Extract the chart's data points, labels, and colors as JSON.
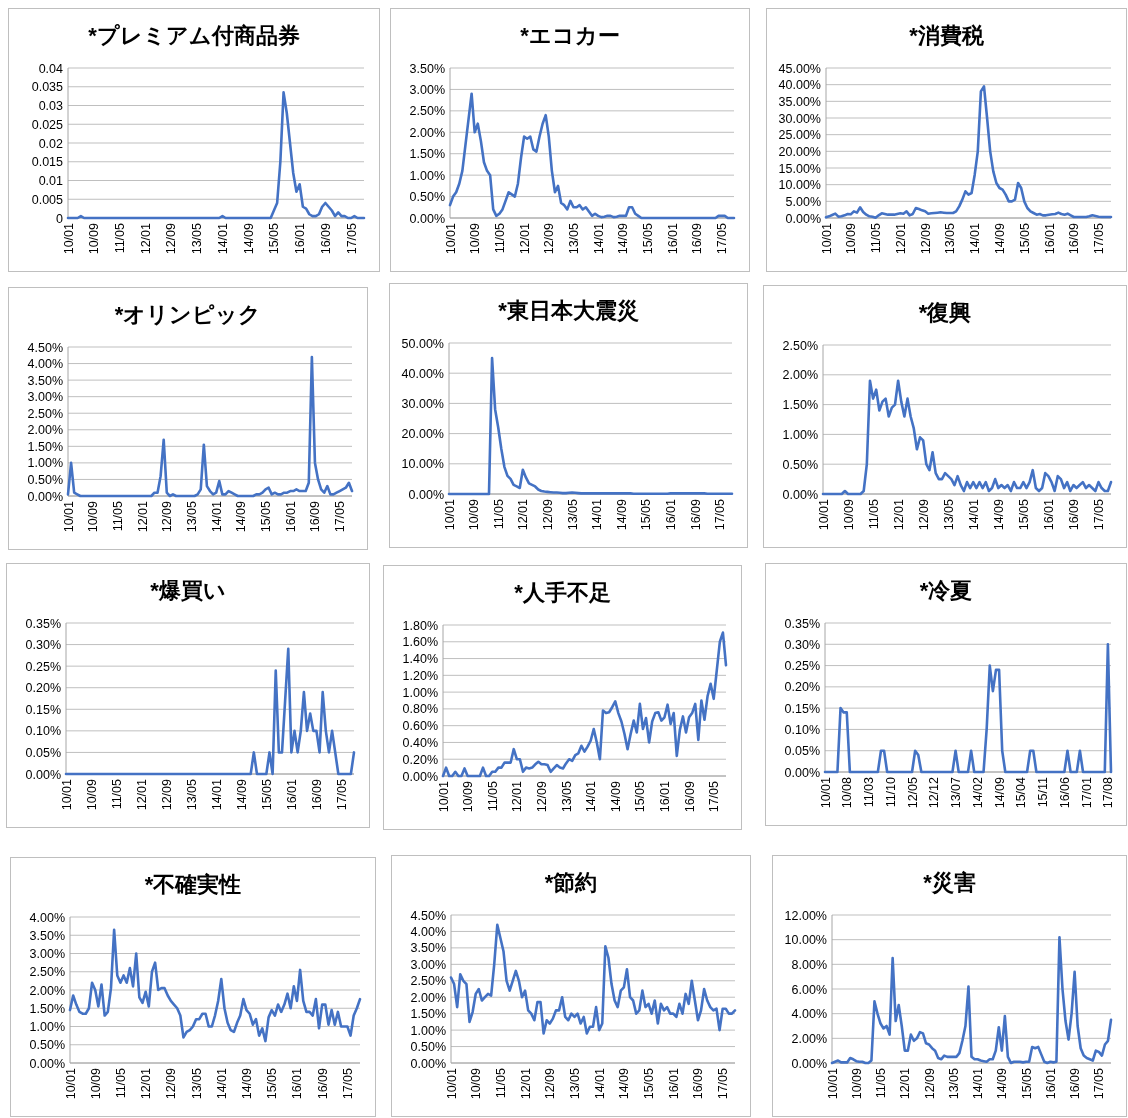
{
  "chart_data": [
    {
      "type": "line",
      "title": "*プレミアム付商品券",
      "color": "#4472c4",
      "grid": "y",
      "ylim": [
        0,
        0.04
      ],
      "yticks": [
        0,
        0.005,
        0.01,
        0.015,
        0.02,
        0.025,
        0.03,
        0.035,
        0.04
      ],
      "categories": [
        "10/01",
        null,
        null,
        null,
        null,
        null,
        null,
        null,
        "10/09",
        null,
        null,
        null,
        null,
        null,
        null,
        null,
        "11/05",
        null,
        null,
        null,
        null,
        null,
        null,
        null,
        "12/01",
        null,
        null,
        null,
        null,
        null,
        null,
        null,
        "12/09",
        null,
        null,
        null,
        null,
        null,
        null,
        null,
        "13/05",
        null,
        null,
        null,
        null,
        null,
        null,
        null,
        "14/01",
        null,
        null,
        null,
        null,
        null,
        null,
        null,
        "14/09",
        null,
        null,
        null,
        null,
        null,
        null,
        null,
        "15/05",
        null,
        null,
        null,
        null,
        null,
        null,
        null,
        "16/01",
        null,
        null,
        null,
        null,
        null,
        null,
        null,
        "16/09",
        null,
        null,
        null,
        null,
        null,
        null,
        null,
        "17/05",
        null,
        null,
        null,
        null
      ],
      "values": [
        0,
        0,
        0,
        0,
        0.0005,
        0,
        0,
        0,
        0,
        0,
        0,
        0,
        0,
        0,
        0,
        0,
        0,
        0,
        0,
        0,
        0,
        0,
        0,
        0,
        0,
        0,
        0,
        0,
        0,
        0,
        0,
        0,
        0,
        0,
        0,
        0,
        0,
        0,
        0,
        0,
        0,
        0,
        0,
        0,
        0,
        0,
        0,
        0,
        0.0005,
        0,
        0,
        0,
        0,
        0,
        0,
        0,
        0,
        0,
        0,
        0,
        0,
        0,
        0,
        0,
        0.002,
        0.004,
        0.015,
        0.0335,
        0.028,
        0.02,
        0.012,
        0.007,
        0.009,
        0.003,
        0.0025,
        0.001,
        0.0005,
        0.0005,
        0.001,
        0.003,
        0.004,
        0.003,
        0.002,
        0.0005,
        0.0015,
        0.0005,
        0.0005,
        0,
        0,
        0.0005,
        0,
        0,
        0
      ]
    },
    {
      "type": "line",
      "title": "*エコカー",
      "color": "#4472c4",
      "grid": "y",
      "ylim": [
        0,
        3.5
      ],
      "yticks": [
        {
          "value": 0,
          "label": "0.00%"
        },
        {
          "value": 0.5,
          "label": "0.50%"
        },
        {
          "value": 1,
          "label": "1.00%"
        },
        {
          "value": 1.5,
          "label": "1.50%"
        },
        {
          "value": 2,
          "label": "2.00%"
        },
        {
          "value": 2.5,
          "label": "2.50%"
        },
        {
          "value": 3,
          "label": "3.00%"
        },
        {
          "value": 3.5,
          "label": "3.50%"
        }
      ],
      "categories": [
        "10/01",
        null,
        null,
        null,
        null,
        null,
        null,
        null,
        "10/09",
        null,
        null,
        null,
        null,
        null,
        null,
        null,
        "11/05",
        null,
        null,
        null,
        null,
        null,
        null,
        null,
        "12/01",
        null,
        null,
        null,
        null,
        null,
        null,
        null,
        "12/09",
        null,
        null,
        null,
        null,
        null,
        null,
        null,
        "13/05",
        null,
        null,
        null,
        null,
        null,
        null,
        null,
        "14/01",
        null,
        null,
        null,
        null,
        null,
        null,
        null,
        "14/09",
        null,
        null,
        null,
        null,
        null,
        null,
        null,
        "15/05",
        null,
        null,
        null,
        null,
        null,
        null,
        null,
        "16/01",
        null,
        null,
        null,
        null,
        null,
        null,
        null,
        "16/09",
        null,
        null,
        null,
        null,
        null,
        null,
        null,
        "17/05",
        null,
        null,
        null,
        null
      ],
      "values": [
        0.3,
        0.5,
        0.6,
        0.8,
        1.1,
        1.7,
        2.3,
        2.9,
        2.0,
        2.2,
        1.8,
        1.3,
        1.1,
        1.0,
        0.2,
        0.05,
        0.1,
        0.2,
        0.4,
        0.6,
        0.55,
        0.5,
        0.8,
        1.4,
        1.9,
        1.85,
        1.9,
        1.6,
        1.55,
        1.9,
        2.2,
        2.4,
        1.9,
        1.1,
        0.6,
        0.75,
        0.35,
        0.3,
        0.2,
        0.4,
        0.25,
        0.25,
        0.3,
        0.2,
        0.25,
        0.15,
        0.05,
        0.1,
        0.05,
        0.02,
        0.03,
        0.05,
        0.05,
        0.02,
        0.03,
        0.05,
        0.05,
        0.05,
        0.25,
        0.25,
        0.1,
        0.05,
        0,
        0,
        0,
        0,
        0,
        0,
        0,
        0,
        0,
        0,
        0,
        0,
        0,
        0,
        0,
        0,
        0,
        0,
        0,
        0,
        0,
        0,
        0,
        0,
        0,
        0.05,
        0.05,
        0.05,
        0,
        0,
        0
      ]
    },
    {
      "type": "line",
      "title": "*消費税",
      "color": "#4472c4",
      "grid": "y",
      "ylim": [
        0,
        45
      ],
      "yticks": [
        {
          "value": 0,
          "label": "0.00%"
        },
        {
          "value": 5,
          "label": "5.00%"
        },
        {
          "value": 10,
          "label": "10.00%"
        },
        {
          "value": 15,
          "label": "15.00%"
        },
        {
          "value": 20,
          "label": "20.00%"
        },
        {
          "value": 25,
          "label": "25.00%"
        },
        {
          "value": 30,
          "label": "30.00%"
        },
        {
          "value": 35,
          "label": "35.00%"
        },
        {
          "value": 40,
          "label": "40.00%"
        },
        {
          "value": 45,
          "label": "45.00%"
        }
      ],
      "categories": [
        "10/01",
        null,
        null,
        null,
        null,
        null,
        null,
        null,
        "10/09",
        null,
        null,
        null,
        null,
        null,
        null,
        null,
        "11/05",
        null,
        null,
        null,
        null,
        null,
        null,
        null,
        "12/01",
        null,
        null,
        null,
        null,
        null,
        null,
        null,
        "12/09",
        null,
        null,
        null,
        null,
        null,
        null,
        null,
        "13/05",
        null,
        null,
        null,
        null,
        null,
        null,
        null,
        "14/01",
        null,
        null,
        null,
        null,
        null,
        null,
        null,
        "14/09",
        null,
        null,
        null,
        null,
        null,
        null,
        null,
        "15/05",
        null,
        null,
        null,
        null,
        null,
        null,
        null,
        "16/01",
        null,
        null,
        null,
        null,
        null,
        null,
        null,
        "16/09",
        null,
        null,
        null,
        null,
        null,
        null,
        null,
        "17/05",
        null,
        null,
        null,
        null
      ],
      "values": [
        0.2,
        0.5,
        0.9,
        1.3,
        0.4,
        0.5,
        0.8,
        1.2,
        1.1,
        2.0,
        1.6,
        3.2,
        1.8,
        1.0,
        0.5,
        0.4,
        0.1,
        0.8,
        1.4,
        1.2,
        1.0,
        1.0,
        1.0,
        1.2,
        1.4,
        1.3,
        2.0,
        0.8,
        1.2,
        3.0,
        2.7,
        2.3,
        2.0,
        1.3,
        1.4,
        1.5,
        1.6,
        1.7,
        1.6,
        1.5,
        1.5,
        1.5,
        2.0,
        3.5,
        5.5,
        8,
        7,
        7.5,
        13,
        20,
        38,
        39.5,
        30,
        20,
        14,
        10.5,
        9,
        8.5,
        7,
        5,
        5,
        5.5,
        10.5,
        9,
        5,
        3,
        2,
        1.5,
        1,
        1.2,
        0.8,
        0.8,
        1,
        1.1,
        1.2,
        1.6,
        1.2,
        1.0,
        1.3,
        0.8,
        0.3,
        0.3,
        0.3,
        0.3,
        0.3,
        0.5,
        0.8,
        0.6,
        0.4,
        0.3,
        0.3,
        0.3,
        0.3
      ]
    },
    {
      "type": "line",
      "title": "*オリンピック",
      "color": "#4472c4",
      "grid": "y",
      "ylim": [
        0,
        4.5
      ],
      "yticks": [
        {
          "value": 0,
          "label": "0.00%"
        },
        {
          "value": 0.5,
          "label": "0.50%"
        },
        {
          "value": 1,
          "label": "1.00%"
        },
        {
          "value": 1.5,
          "label": "1.50%"
        },
        {
          "value": 2,
          "label": "2.00%"
        },
        {
          "value": 2.5,
          "label": "2.50%"
        },
        {
          "value": 3,
          "label": "3.00%"
        },
        {
          "value": 3.5,
          "label": "3.50%"
        },
        {
          "value": 4,
          "label": "4.00%"
        },
        {
          "value": 4.5,
          "label": "4.50%"
        }
      ],
      "categories": [
        "10/01",
        null,
        null,
        null,
        null,
        null,
        null,
        null,
        "10/09",
        null,
        null,
        null,
        null,
        null,
        null,
        null,
        "11/05",
        null,
        null,
        null,
        null,
        null,
        null,
        null,
        "12/01",
        null,
        null,
        null,
        null,
        null,
        null,
        null,
        "12/09",
        null,
        null,
        null,
        null,
        null,
        null,
        null,
        "13/05",
        null,
        null,
        null,
        null,
        null,
        null,
        null,
        "14/01",
        null,
        null,
        null,
        null,
        null,
        null,
        null,
        "14/09",
        null,
        null,
        null,
        null,
        null,
        null,
        null,
        "15/05",
        null,
        null,
        null,
        null,
        null,
        null,
        null,
        "16/01",
        null,
        null,
        null,
        null,
        null,
        null,
        null,
        "16/09",
        null,
        null,
        null,
        null,
        null,
        null,
        null,
        "17/05",
        null,
        null,
        null,
        null
      ],
      "values": [
        0.05,
        1.0,
        0.1,
        0.05,
        0,
        0,
        0,
        0,
        0,
        0,
        0,
        0,
        0,
        0,
        0,
        0,
        0,
        0,
        0,
        0,
        0,
        0,
        0,
        0,
        0,
        0,
        0,
        0,
        0.1,
        0.1,
        0.6,
        1.7,
        0.1,
        0,
        0.05,
        0,
        0,
        0,
        0,
        0,
        0,
        0,
        0.05,
        0.2,
        1.55,
        0.3,
        0.15,
        0.05,
        0.1,
        0.45,
        0.05,
        0.05,
        0.15,
        0.1,
        0.05,
        0,
        0,
        0,
        0,
        0,
        0,
        0.05,
        0.05,
        0.1,
        0.2,
        0.25,
        0.05,
        0.1,
        0.05,
        0.05,
        0.1,
        0.1,
        0.15,
        0.15,
        0.2,
        0.15,
        0.15,
        0.15,
        0.4,
        4.2,
        1.0,
        0.5,
        0.2,
        0.1,
        0.3,
        0.05,
        0.05,
        0.1,
        0.15,
        0.2,
        0.25,
        0.4,
        0.15
      ]
    },
    {
      "type": "line",
      "title": "*東日本大震災",
      "color": "#4472c4",
      "grid": "y",
      "ylim": [
        0,
        50
      ],
      "yticks": [
        {
          "value": 0,
          "label": "0.00%"
        },
        {
          "value": 10,
          "label": "10.00%"
        },
        {
          "value": 20,
          "label": "20.00%"
        },
        {
          "value": 30,
          "label": "30.00%"
        },
        {
          "value": 40,
          "label": "40.00%"
        },
        {
          "value": 50,
          "label": "50.00%"
        }
      ],
      "categories": [
        "10/01",
        null,
        null,
        null,
        null,
        null,
        null,
        null,
        "10/09",
        null,
        null,
        null,
        null,
        null,
        null,
        null,
        "11/05",
        null,
        null,
        null,
        null,
        null,
        null,
        null,
        "12/01",
        null,
        null,
        null,
        null,
        null,
        null,
        null,
        "12/09",
        null,
        null,
        null,
        null,
        null,
        null,
        null,
        "13/05",
        null,
        null,
        null,
        null,
        null,
        null,
        null,
        "14/01",
        null,
        null,
        null,
        null,
        null,
        null,
        null,
        "14/09",
        null,
        null,
        null,
        null,
        null,
        null,
        null,
        "15/05",
        null,
        null,
        null,
        null,
        null,
        null,
        null,
        "16/01",
        null,
        null,
        null,
        null,
        null,
        null,
        null,
        "16/09",
        null,
        null,
        null,
        null,
        null,
        null,
        null,
        "17/05",
        null,
        null,
        null,
        null
      ],
      "values": [
        0,
        0,
        0,
        0,
        0,
        0,
        0,
        0,
        0,
        0,
        0,
        0,
        0,
        0,
        45,
        28,
        22,
        15,
        9,
        6,
        5,
        3,
        2.5,
        2,
        8,
        5.5,
        3.5,
        3,
        2.5,
        1.5,
        1,
        0.8,
        0.7,
        0.6,
        0.5,
        0.5,
        0.4,
        0.3,
        0.3,
        0.4,
        0.5,
        0.4,
        0.3,
        0.2,
        0.2,
        0.2,
        0.2,
        0.2,
        0.2,
        0.2,
        0.2,
        0.2,
        0.2,
        0.2,
        0.2,
        0.2,
        0.2,
        0.2,
        0.2,
        0.2,
        0.1,
        0.1,
        0.1,
        0.1,
        0.1,
        0.1,
        0.1,
        0.1,
        0.1,
        0.1,
        0.1,
        0.1,
        0.2,
        0.2,
        0.2,
        0.2,
        0.2,
        0.2,
        0.2,
        0.2,
        0.2,
        0.2,
        0.2,
        0.2,
        0.1,
        0.1,
        0.1,
        0.1,
        0.1,
        0.1,
        0.1,
        0.1,
        0.1
      ]
    },
    {
      "type": "line",
      "title": "*復興",
      "color": "#4472c4",
      "grid": "y",
      "ylim": [
        0,
        2.5
      ],
      "yticks": [
        {
          "value": 0,
          "label": "0.00%"
        },
        {
          "value": 0.5,
          "label": "0.50%"
        },
        {
          "value": 1,
          "label": "1.00%"
        },
        {
          "value": 1.5,
          "label": "1.50%"
        },
        {
          "value": 2,
          "label": "2.00%"
        },
        {
          "value": 2.5,
          "label": "2.50%"
        }
      ],
      "categories": [
        "10/01",
        null,
        null,
        null,
        null,
        null,
        null,
        null,
        "10/09",
        null,
        null,
        null,
        null,
        null,
        null,
        null,
        "11/05",
        null,
        null,
        null,
        null,
        null,
        null,
        null,
        "12/01",
        null,
        null,
        null,
        null,
        null,
        null,
        null,
        "12/09",
        null,
        null,
        null,
        null,
        null,
        null,
        null,
        "13/05",
        null,
        null,
        null,
        null,
        null,
        null,
        null,
        "14/01",
        null,
        null,
        null,
        null,
        null,
        null,
        null,
        "14/09",
        null,
        null,
        null,
        null,
        null,
        null,
        null,
        "15/05",
        null,
        null,
        null,
        null,
        null,
        null,
        null,
        "16/01",
        null,
        null,
        null,
        null,
        null,
        null,
        null,
        "16/09",
        null,
        null,
        null,
        null,
        null,
        null,
        null,
        "17/05",
        null,
        null,
        null,
        null
      ],
      "values": [
        0,
        0,
        0,
        0,
        0,
        0,
        0,
        0.05,
        0,
        0,
        0,
        0,
        0,
        0.05,
        0.5,
        1.9,
        1.6,
        1.75,
        1.4,
        1.55,
        1.6,
        1.3,
        1.45,
        1.5,
        1.9,
        1.55,
        1.3,
        1.6,
        1.3,
        1.1,
        0.75,
        0.95,
        0.9,
        0.5,
        0.4,
        0.7,
        0.35,
        0.25,
        0.25,
        0.35,
        0.3,
        0.25,
        0.15,
        0.3,
        0.15,
        0.05,
        0.2,
        0.1,
        0.2,
        0.1,
        0.2,
        0.1,
        0.2,
        0.05,
        0.1,
        0.25,
        0.1,
        0.15,
        0.1,
        0.15,
        0.05,
        0.2,
        0.1,
        0.1,
        0.2,
        0.1,
        0.2,
        0.4,
        0.1,
        0.05,
        0.1,
        0.35,
        0.3,
        0.2,
        0.05,
        0.3,
        0.25,
        0.1,
        0.2,
        0.05,
        0.15,
        0.1,
        0.15,
        0.2,
        0.1,
        0.15,
        0.1,
        0.05,
        0.2,
        0.1,
        0.05,
        0.05,
        0.2
      ]
    },
    {
      "type": "line",
      "title": "*爆買い",
      "color": "#4472c4",
      "grid": "y",
      "ylim": [
        0,
        0.35
      ],
      "yticks": [
        {
          "value": 0,
          "label": "0.00%"
        },
        {
          "value": 0.05,
          "label": "0.05%"
        },
        {
          "value": 0.1,
          "label": "0.10%"
        },
        {
          "value": 0.15,
          "label": "0.15%"
        },
        {
          "value": 0.2,
          "label": "0.20%"
        },
        {
          "value": 0.25,
          "label": "0.25%"
        },
        {
          "value": 0.3,
          "label": "0.30%"
        },
        {
          "value": 0.35,
          "label": "0.35%"
        }
      ],
      "categories": [
        "10/01",
        null,
        null,
        null,
        null,
        null,
        null,
        null,
        "10/09",
        null,
        null,
        null,
        null,
        null,
        null,
        null,
        "11/05",
        null,
        null,
        null,
        null,
        null,
        null,
        null,
        "12/01",
        null,
        null,
        null,
        null,
        null,
        null,
        null,
        "12/09",
        null,
        null,
        null,
        null,
        null,
        null,
        null,
        "13/05",
        null,
        null,
        null,
        null,
        null,
        null,
        null,
        "14/01",
        null,
        null,
        null,
        null,
        null,
        null,
        null,
        "14/09",
        null,
        null,
        null,
        null,
        null,
        null,
        null,
        "15/05",
        null,
        null,
        null,
        null,
        null,
        null,
        null,
        "16/01",
        null,
        null,
        null,
        null,
        null,
        null,
        null,
        "16/09",
        null,
        null,
        null,
        null,
        null,
        null,
        null,
        "17/05",
        null,
        null,
        null,
        null
      ],
      "values": [
        0,
        0,
        0,
        0,
        0,
        0,
        0,
        0,
        0,
        0,
        0,
        0,
        0,
        0,
        0,
        0,
        0,
        0,
        0,
        0,
        0,
        0,
        0,
        0,
        0,
        0,
        0,
        0,
        0,
        0,
        0,
        0,
        0,
        0,
        0,
        0,
        0,
        0,
        0,
        0,
        0,
        0,
        0,
        0,
        0,
        0,
        0,
        0,
        0,
        0,
        0,
        0,
        0,
        0,
        0,
        0,
        0,
        0,
        0,
        0,
        0.05,
        0,
        0,
        0,
        0,
        0.05,
        0,
        0.24,
        0.05,
        0.05,
        0.17,
        0.29,
        0.05,
        0.1,
        0.05,
        0.1,
        0.19,
        0.1,
        0.14,
        0.1,
        0.1,
        0.05,
        0.19,
        0.1,
        0.05,
        0.1,
        0.05,
        0,
        0,
        0,
        0,
        0,
        0.05
      ]
    },
    {
      "type": "line",
      "title": "*人手不足",
      "color": "#4472c4",
      "grid": "y",
      "ylim": [
        0,
        1.8
      ],
      "yticks": [
        {
          "value": 0,
          "label": "0.00%"
        },
        {
          "value": 0.2,
          "label": "0.20%"
        },
        {
          "value": 0.4,
          "label": "0.40%"
        },
        {
          "value": 0.6,
          "label": "0.60%"
        },
        {
          "value": 0.8,
          "label": "0.80%"
        },
        {
          "value": 1,
          "label": "1.00%"
        },
        {
          "value": 1.2,
          "label": "1.20%"
        },
        {
          "value": 1.4,
          "label": "1.40%"
        },
        {
          "value": 1.6,
          "label": "1.60%"
        },
        {
          "value": 1.8,
          "label": "1.80%"
        }
      ],
      "categories": [
        "10/01",
        null,
        null,
        null,
        null,
        null,
        null,
        null,
        "10/09",
        null,
        null,
        null,
        null,
        null,
        null,
        null,
        "11/05",
        null,
        null,
        null,
        null,
        null,
        null,
        null,
        "12/01",
        null,
        null,
        null,
        null,
        null,
        null,
        null,
        "12/09",
        null,
        null,
        null,
        null,
        null,
        null,
        null,
        "13/05",
        null,
        null,
        null,
        null,
        null,
        null,
        null,
        "14/01",
        null,
        null,
        null,
        null,
        null,
        null,
        null,
        "14/09",
        null,
        null,
        null,
        null,
        null,
        null,
        null,
        "15/05",
        null,
        null,
        null,
        null,
        null,
        null,
        null,
        "16/01",
        null,
        null,
        null,
        null,
        null,
        null,
        null,
        "16/09",
        null,
        null,
        null,
        null,
        null,
        null,
        null,
        "17/05",
        null,
        null,
        null,
        null
      ],
      "values": [
        0,
        0.1,
        0,
        0,
        0.05,
        0,
        0,
        0.09,
        0,
        0,
        0,
        0,
        0,
        0.1,
        0,
        0,
        0.05,
        0.05,
        0.1,
        0.1,
        0.16,
        0.16,
        0.16,
        0.32,
        0.2,
        0.2,
        0.05,
        0.1,
        0.09,
        0.1,
        0.14,
        0.17,
        0.14,
        0.14,
        0.13,
        0.05,
        0.09,
        0.13,
        0.1,
        0.09,
        0.15,
        0.2,
        0.18,
        0.25,
        0.27,
        0.36,
        0.29,
        0.35,
        0.42,
        0.56,
        0.4,
        0.2,
        0.78,
        0.75,
        0.76,
        0.82,
        0.89,
        0.75,
        0.65,
        0.5,
        0.32,
        0.5,
        0.66,
        0.52,
        0.86,
        0.56,
        0.69,
        0.4,
        0.65,
        0.75,
        0.76,
        0.66,
        0.7,
        0.85,
        0.62,
        0.75,
        0.24,
        0.55,
        0.71,
        0.52,
        0.7,
        0.75,
        0.86,
        0.43,
        0.9,
        0.67,
        0.95,
        1.1,
        0.92,
        1.26,
        1.6,
        1.71,
        1.32
      ]
    },
    {
      "type": "line",
      "title": "*冷夏",
      "color": "#4472c4",
      "grid": "y",
      "ylim": [
        0,
        0.35
      ],
      "yticks": [
        {
          "value": 0,
          "label": "0.00%"
        },
        {
          "value": 0.05,
          "label": "0.05%"
        },
        {
          "value": 0.1,
          "label": "0.10%"
        },
        {
          "value": 0.15,
          "label": "0.15%"
        },
        {
          "value": 0.2,
          "label": "0.20%"
        },
        {
          "value": 0.25,
          "label": "0.25%"
        },
        {
          "value": 0.3,
          "label": "0.30%"
        },
        {
          "value": 0.35,
          "label": "0.35%"
        }
      ],
      "categories": [
        "10/01",
        null,
        null,
        null,
        null,
        null,
        null,
        "10/08",
        null,
        null,
        null,
        null,
        null,
        null,
        "11/03",
        null,
        null,
        null,
        null,
        null,
        null,
        "11/10",
        null,
        null,
        null,
        null,
        null,
        null,
        "12/05",
        null,
        null,
        null,
        null,
        null,
        null,
        "12/12",
        null,
        null,
        null,
        null,
        null,
        null,
        "13/07",
        null,
        null,
        null,
        null,
        null,
        null,
        "14/02",
        null,
        null,
        null,
        null,
        null,
        null,
        "14/09",
        null,
        null,
        null,
        null,
        null,
        null,
        "15/04",
        null,
        null,
        null,
        null,
        null,
        null,
        "15/11",
        null,
        null,
        null,
        null,
        null,
        null,
        "16/06",
        null,
        null,
        null,
        null,
        null,
        null,
        "17/01",
        null,
        null,
        null,
        null,
        null,
        null,
        "17/08",
        null
      ],
      "values": [
        0,
        0,
        0,
        0,
        0,
        0.15,
        0.14,
        0.14,
        0,
        0,
        0,
        0,
        0,
        0,
        0,
        0,
        0,
        0,
        0.05,
        0.05,
        0,
        0,
        0,
        0,
        0,
        0,
        0,
        0,
        0,
        0.05,
        0.04,
        0,
        0,
        0,
        0,
        0,
        0,
        0,
        0,
        0,
        0,
        0,
        0.05,
        0,
        0,
        0,
        0,
        0.05,
        0,
        0,
        0,
        0,
        0.1,
        0.25,
        0.19,
        0.24,
        0.24,
        0.05,
        0,
        0,
        0,
        0,
        0,
        0,
        0,
        0,
        0.05,
        0.05,
        0,
        0,
        0,
        0,
        0,
        0,
        0,
        0,
        0,
        0,
        0.05,
        0,
        0,
        0,
        0.05,
        0,
        0,
        0,
        0,
        0,
        0,
        0,
        0,
        0.3,
        0
      ]
    },
    {
      "type": "line",
      "title": "*不確実性",
      "color": "#4472c4",
      "grid": "y",
      "ylim": [
        0,
        4
      ],
      "yticks": [
        {
          "value": 0,
          "label": "0.00%"
        },
        {
          "value": 0.5,
          "label": "0.50%"
        },
        {
          "value": 1,
          "label": "1.00%"
        },
        {
          "value": 1.5,
          "label": "1.50%"
        },
        {
          "value": 2,
          "label": "2.00%"
        },
        {
          "value": 2.5,
          "label": "2.50%"
        },
        {
          "value": 3,
          "label": "3.00%"
        },
        {
          "value": 3.5,
          "label": "3.50%"
        },
        {
          "value": 4,
          "label": "4.00%"
        }
      ],
      "categories": [
        "10/01",
        null,
        null,
        null,
        null,
        null,
        null,
        null,
        "10/09",
        null,
        null,
        null,
        null,
        null,
        null,
        null,
        "11/05",
        null,
        null,
        null,
        null,
        null,
        null,
        null,
        "12/01",
        null,
        null,
        null,
        null,
        null,
        null,
        null,
        "12/09",
        null,
        null,
        null,
        null,
        null,
        null,
        null,
        "13/05",
        null,
        null,
        null,
        null,
        null,
        null,
        null,
        "14/01",
        null,
        null,
        null,
        null,
        null,
        null,
        null,
        "14/09",
        null,
        null,
        null,
        null,
        null,
        null,
        null,
        "15/05",
        null,
        null,
        null,
        null,
        null,
        null,
        null,
        "16/01",
        null,
        null,
        null,
        null,
        null,
        null,
        null,
        "16/09",
        null,
        null,
        null,
        null,
        null,
        null,
        null,
        "17/05",
        null,
        null,
        null,
        null
      ],
      "values": [
        1.45,
        1.85,
        1.6,
        1.4,
        1.35,
        1.35,
        1.5,
        2.2,
        2.0,
        1.55,
        2.15,
        1.3,
        1.4,
        2.05,
        3.65,
        2.4,
        2.2,
        2.4,
        2.2,
        2.6,
        2.1,
        3.0,
        1.8,
        1.65,
        1.95,
        1.55,
        2.5,
        2.75,
        2.0,
        2.05,
        2.05,
        1.85,
        1.7,
        1.6,
        1.5,
        1.3,
        0.7,
        0.85,
        0.9,
        1.0,
        1.2,
        1.2,
        1.35,
        1.35,
        1.0,
        1.0,
        1.3,
        1.7,
        2.3,
        1.5,
        1.1,
        0.9,
        0.85,
        1.1,
        1.3,
        1.75,
        1.45,
        1.35,
        1.05,
        1.2,
        0.75,
        0.95,
        0.6,
        1.25,
        1.45,
        1.3,
        1.6,
        1.4,
        1.6,
        1.9,
        1.5,
        2.1,
        1.7,
        2.55,
        1.7,
        1.4,
        1.4,
        1.3,
        1.75,
        0.95,
        1.6,
        1.6,
        1.05,
        1.45,
        1.05,
        1.4,
        1.0,
        1.0,
        1.0,
        0.75,
        1.3,
        1.5,
        1.75
      ]
    },
    {
      "type": "line",
      "title": "*節約",
      "color": "#4472c4",
      "grid": "y",
      "ylim": [
        0,
        4.5
      ],
      "yticks": [
        {
          "value": 0,
          "label": "0.00%"
        },
        {
          "value": 0.5,
          "label": "0.50%"
        },
        {
          "value": 1,
          "label": "1.00%"
        },
        {
          "value": 1.5,
          "label": "1.50%"
        },
        {
          "value": 2,
          "label": "2.00%"
        },
        {
          "value": 2.5,
          "label": "2.50%"
        },
        {
          "value": 3,
          "label": "3.00%"
        },
        {
          "value": 3.5,
          "label": "3.50%"
        },
        {
          "value": 4,
          "label": "4.00%"
        },
        {
          "value": 4.5,
          "label": "4.50%"
        }
      ],
      "categories": [
        "10/01",
        null,
        null,
        null,
        null,
        null,
        null,
        null,
        "10/09",
        null,
        null,
        null,
        null,
        null,
        null,
        null,
        "11/05",
        null,
        null,
        null,
        null,
        null,
        null,
        null,
        "12/01",
        null,
        null,
        null,
        null,
        null,
        null,
        null,
        "12/09",
        null,
        null,
        null,
        null,
        null,
        null,
        null,
        "13/05",
        null,
        null,
        null,
        null,
        null,
        null,
        null,
        "14/01",
        null,
        null,
        null,
        null,
        null,
        null,
        null,
        "14/09",
        null,
        null,
        null,
        null,
        null,
        null,
        null,
        "15/05",
        null,
        null,
        null,
        null,
        null,
        null,
        null,
        "16/01",
        null,
        null,
        null,
        null,
        null,
        null,
        null,
        "16/09",
        null,
        null,
        null,
        null,
        null,
        null,
        null,
        "17/05",
        null,
        null,
        null,
        null
      ],
      "values": [
        2.6,
        2.4,
        1.7,
        2.7,
        2.5,
        2.4,
        1.25,
        1.55,
        2.1,
        2.25,
        1.9,
        2.0,
        2.1,
        2.05,
        3.0,
        4.2,
        3.8,
        3.4,
        2.5,
        2.2,
        2.5,
        2.8,
        2.5,
        2.0,
        2.2,
        1.6,
        1.5,
        1.3,
        1.85,
        1.85,
        0.9,
        1.3,
        1.2,
        1.35,
        1.6,
        1.6,
        2.0,
        1.4,
        1.3,
        1.5,
        1.4,
        1.5,
        1.2,
        1.4,
        0.9,
        1.1,
        1.1,
        1.7,
        1.0,
        1.2,
        3.55,
        3.2,
        2.4,
        1.9,
        1.7,
        2.2,
        2.3,
        2.85,
        2.0,
        1.9,
        1.5,
        1.6,
        2.2,
        1.7,
        1.8,
        1.5,
        1.9,
        1.2,
        1.8,
        1.6,
        1.7,
        1.5,
        1.5,
        1.4,
        1.8,
        1.5,
        2.1,
        1.8,
        2.5,
        1.9,
        1.3,
        1.6,
        2.25,
        1.9,
        1.7,
        1.6,
        1.65,
        1.0,
        1.65,
        1.65,
        1.5,
        1.5,
        1.6
      ]
    },
    {
      "type": "line",
      "title": "*災害",
      "color": "#4472c4",
      "grid": "y",
      "ylim": [
        0,
        12
      ],
      "yticks": [
        {
          "value": 0,
          "label": "0.00%"
        },
        {
          "value": 2,
          "label": "2.00%"
        },
        {
          "value": 4,
          "label": "4.00%"
        },
        {
          "value": 6,
          "label": "6.00%"
        },
        {
          "value": 8,
          "label": "8.00%"
        },
        {
          "value": 10,
          "label": "10.00%"
        },
        {
          "value": 12,
          "label": "12.00%"
        }
      ],
      "categories": [
        "10/01",
        null,
        null,
        null,
        null,
        null,
        null,
        null,
        "10/09",
        null,
        null,
        null,
        null,
        null,
        null,
        null,
        "11/05",
        null,
        null,
        null,
        null,
        null,
        null,
        null,
        "12/01",
        null,
        null,
        null,
        null,
        null,
        null,
        null,
        "12/09",
        null,
        null,
        null,
        null,
        null,
        null,
        null,
        "13/05",
        null,
        null,
        null,
        null,
        null,
        null,
        null,
        "14/01",
        null,
        null,
        null,
        null,
        null,
        null,
        null,
        "14/09",
        null,
        null,
        null,
        null,
        null,
        null,
        null,
        "15/05",
        null,
        null,
        null,
        null,
        null,
        null,
        null,
        "16/01",
        null,
        null,
        null,
        null,
        null,
        null,
        null,
        "16/09",
        null,
        null,
        null,
        null,
        null,
        null,
        null,
        "17/05",
        null,
        null,
        null,
        null
      ],
      "values": [
        0,
        0.1,
        0.2,
        0.05,
        0.05,
        0.05,
        0.4,
        0.3,
        0.15,
        0.1,
        0.1,
        0,
        0,
        0.2,
        5.0,
        4.0,
        3.2,
        2.8,
        3.0,
        2.3,
        8.5,
        3.4,
        4.7,
        3.0,
        1.0,
        1.0,
        2.3,
        1.8,
        2.0,
        2.5,
        2.4,
        1.6,
        1.5,
        1.2,
        1.0,
        0.4,
        0.3,
        0.6,
        0.5,
        0.5,
        0.5,
        0.5,
        0.8,
        1.8,
        3.0,
        6.2,
        0.5,
        0.3,
        0.3,
        0.2,
        0.15,
        0.1,
        0.3,
        0.3,
        1.0,
        2.9,
        1.0,
        3.8,
        0.5,
        0,
        0.1,
        0.1,
        0.1,
        0.05,
        0.1,
        0.1,
        1.3,
        1.2,
        1.3,
        0.7,
        0.1,
        0,
        0.1,
        0.05,
        0.1,
        10.2,
        6.0,
        3.4,
        1.9,
        4.0,
        7.4,
        3.0,
        1.2,
        0.6,
        0.4,
        0.3,
        0.2,
        1.0,
        0.9,
        0.6,
        1.5,
        1.8,
        3.5
      ]
    }
  ]
}
